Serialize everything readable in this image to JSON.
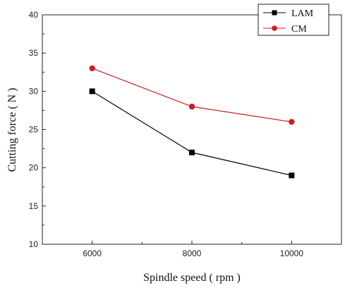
{
  "chart_data": {
    "type": "line",
    "x": [
      6000,
      8000,
      10000
    ],
    "xticks": [
      "6000",
      "8000",
      "10000"
    ],
    "xlim": [
      5000,
      11000
    ],
    "ylim": [
      10,
      40
    ],
    "yticks": [
      "10",
      "15",
      "20",
      "25",
      "30",
      "35",
      "40"
    ],
    "xlabel": "Spindle speed ( rpm )",
    "ylabel": "Cutting force ( N )",
    "grid": false,
    "legend_position": "top-right",
    "series": [
      {
        "name": "LAM",
        "values": [
          30,
          22,
          19
        ],
        "color": "#000000",
        "marker": "square"
      },
      {
        "name": "CM",
        "values": [
          33,
          28,
          26
        ],
        "color": "#cc1f1f",
        "marker": "circle"
      }
    ]
  }
}
